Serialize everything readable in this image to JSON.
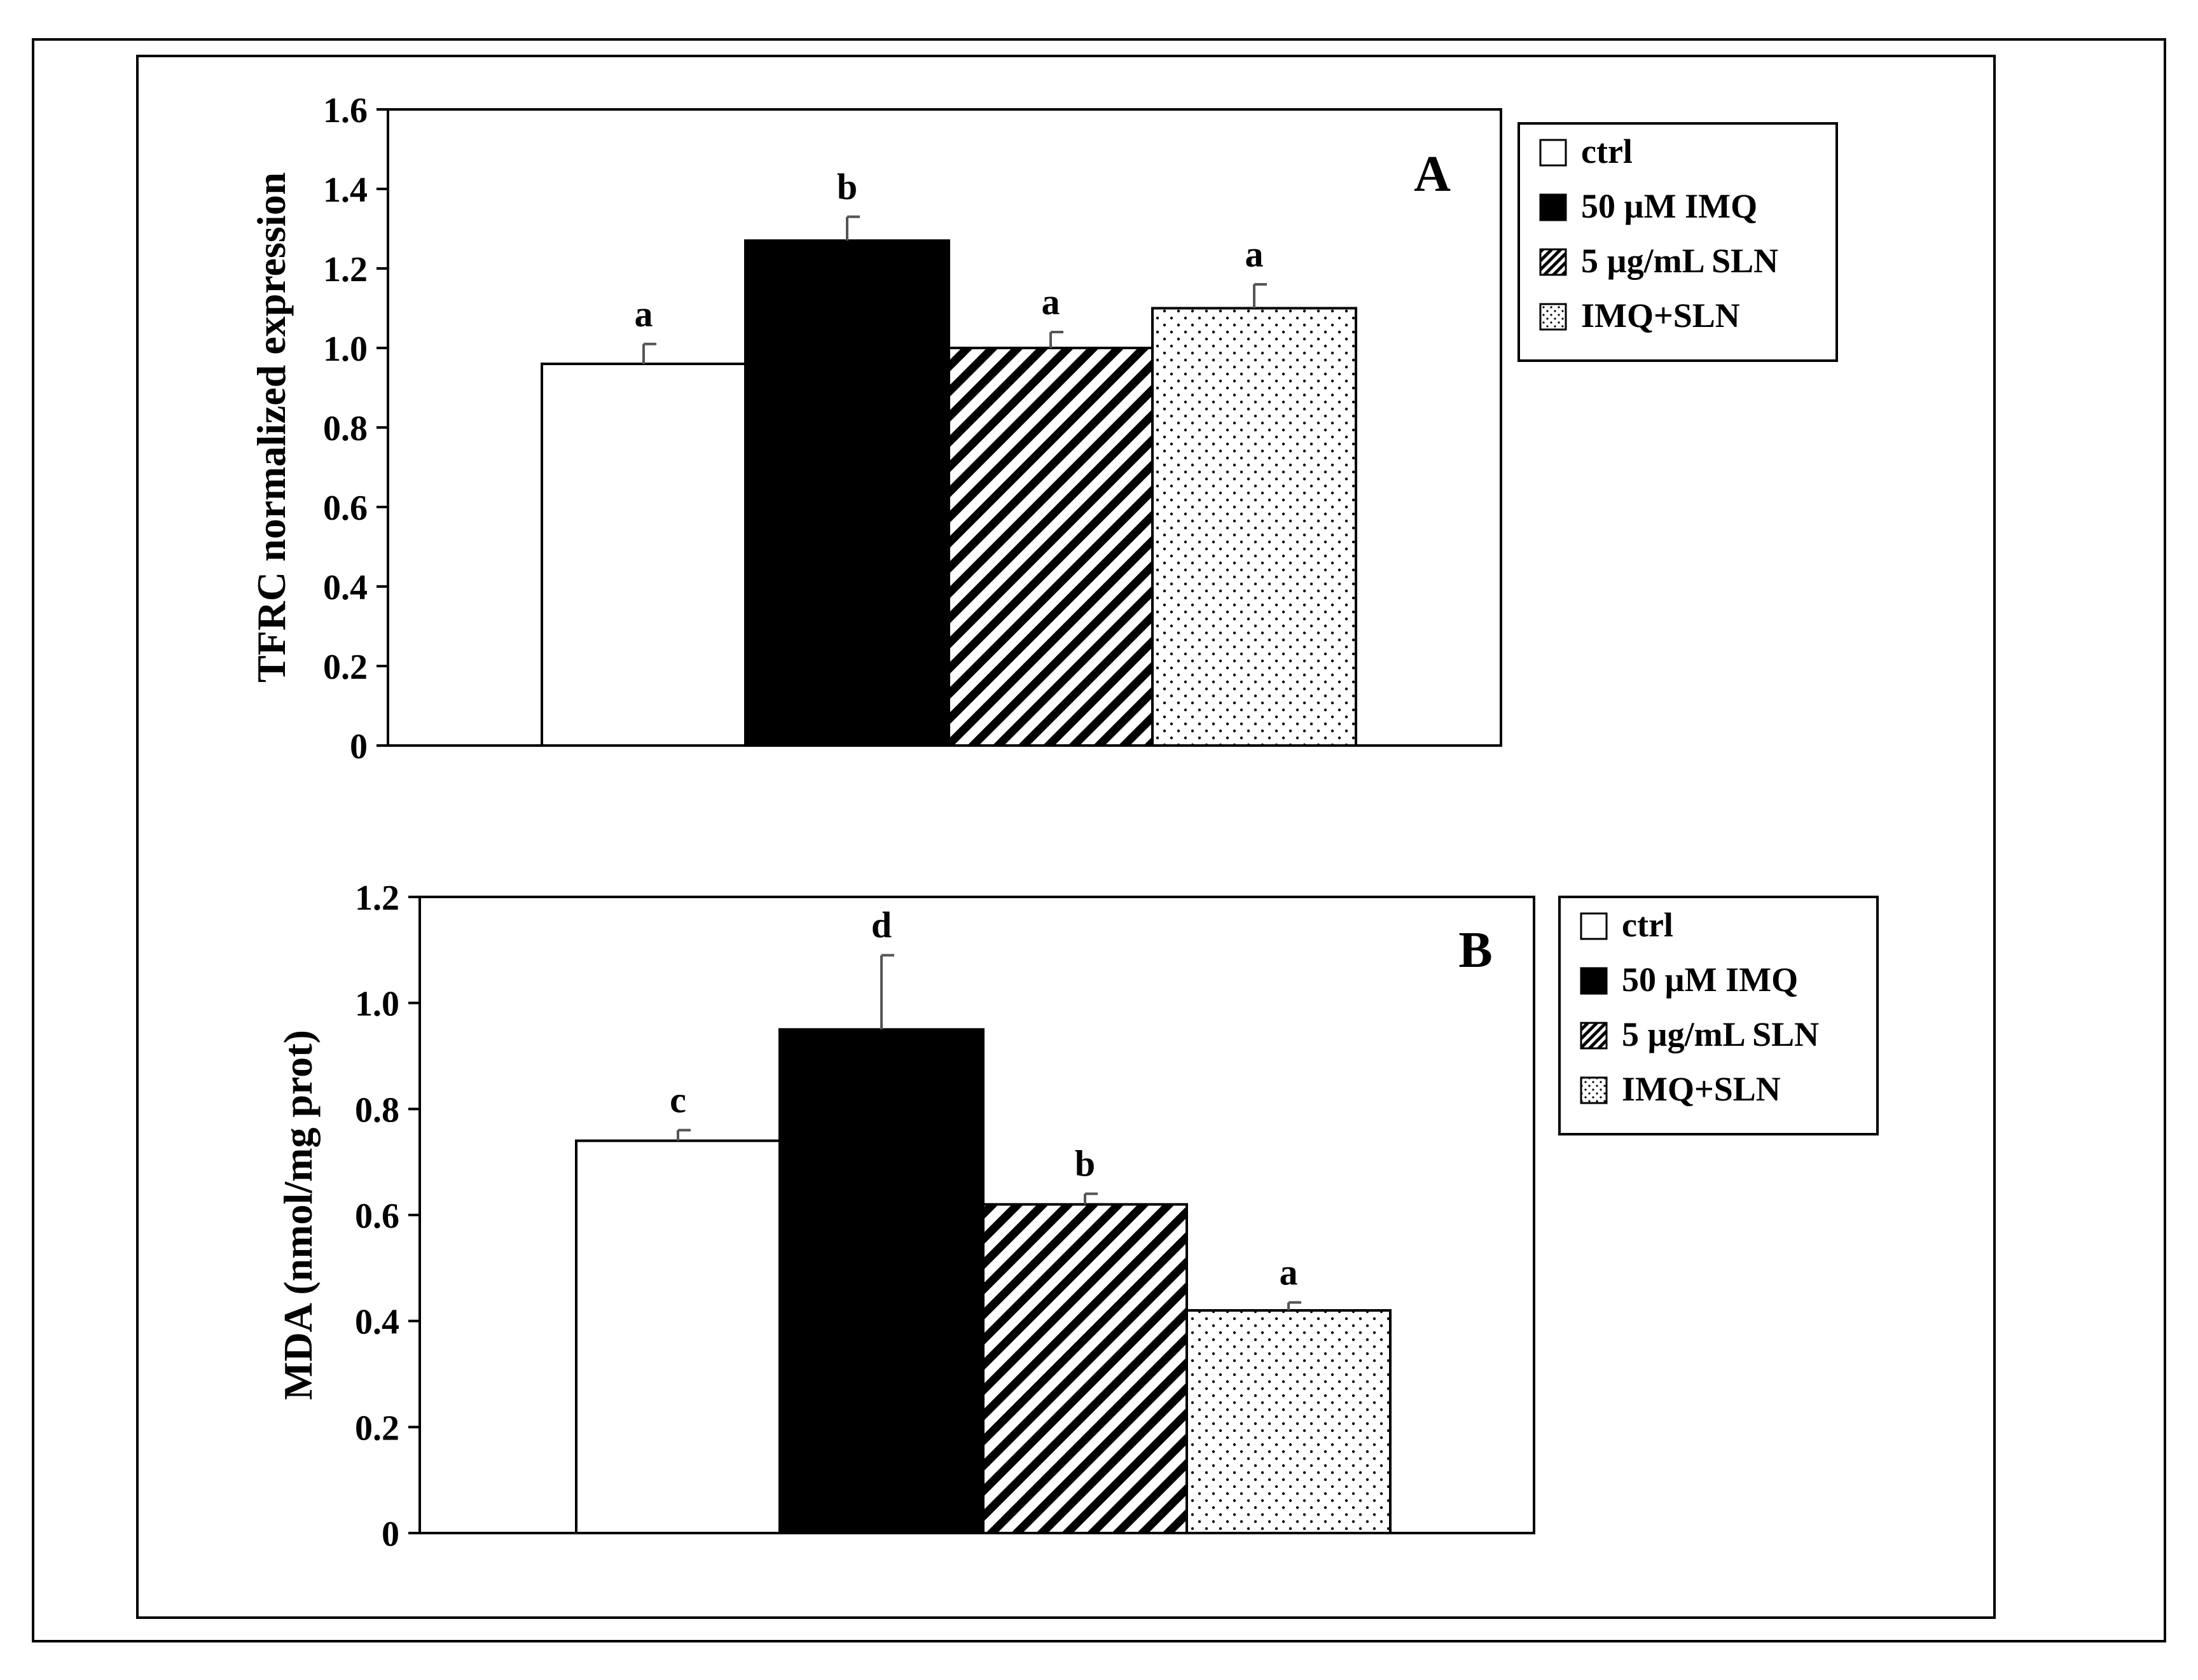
{
  "chart_data": [
    {
      "type": "bar",
      "panel_label": "A",
      "ylabel": "TFRC normalized  expression",
      "xlabel": "",
      "ylim": [
        0,
        1.6
      ],
      "yticks": [
        "0",
        "0.2",
        "0.4",
        "0.6",
        "0.8",
        "1.0",
        "1.2",
        "1.4",
        "1.6"
      ],
      "ytick_values": [
        0,
        0.2,
        0.4,
        0.6,
        0.8,
        1.0,
        1.2,
        1.4,
        1.6
      ],
      "categories": [
        "ctrl",
        "50 µM IMQ",
        "5 µg/mL SLN",
        "IMQ+SLN"
      ],
      "values": [
        0.96,
        1.27,
        1.0,
        1.1
      ],
      "errors": [
        0.05,
        0.06,
        0.04,
        0.06
      ],
      "significance": [
        "a",
        "b",
        "a",
        "a"
      ],
      "legend": [
        "ctrl",
        "50 µM IMQ",
        "5 µg/mL SLN",
        "IMQ+SLN"
      ],
      "legend_position": "right"
    },
    {
      "type": "bar",
      "panel_label": "B",
      "ylabel": "MDA (nmol/mg prot)",
      "xlabel": "",
      "ylim": [
        0,
        1.2
      ],
      "yticks": [
        "0",
        "0.2",
        "0.4",
        "0.6",
        "0.8",
        "1.0",
        "1.2"
      ],
      "ytick_values": [
        0,
        0.2,
        0.4,
        0.6,
        0.8,
        1.0,
        1.2
      ],
      "categories": [
        "ctrl",
        "50 µM IMQ",
        "5 µg/mL SLN",
        "IMQ+SLN"
      ],
      "values": [
        0.74,
        0.95,
        0.62,
        0.42
      ],
      "errors": [
        0.02,
        0.14,
        0.02,
        0.015
      ],
      "significance": [
        "c",
        "d",
        "b",
        "a"
      ],
      "legend": [
        "ctrl",
        "50 µM IMQ",
        "5 µg/mL SLN",
        "IMQ+SLN"
      ],
      "legend_position": "right"
    }
  ],
  "styles": {
    "fills": [
      "white",
      "black",
      "hatch",
      "dots"
    ],
    "axis_color": "#000000",
    "error_color": "#555555"
  }
}
